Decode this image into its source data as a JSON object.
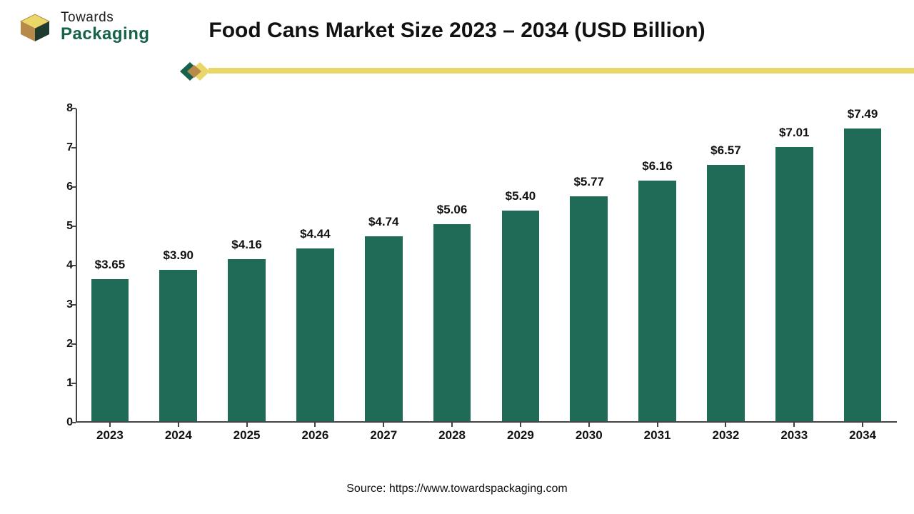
{
  "logo": {
    "line1": "Towards",
    "line2": "Packaging",
    "mark_colors": {
      "brown": "#b78a4a",
      "dark": "#1f3a2e",
      "yellow": "#ead76a",
      "outline": "#0e4a3a"
    }
  },
  "title": "Food Cans Market Size 2023 – 2034 (USD Billion)",
  "divider": {
    "line_color": "#ead76a",
    "glyph_colors": {
      "green": "#16624c",
      "brown": "#b78a4a",
      "yellow": "#ead76a"
    }
  },
  "chart": {
    "type": "bar",
    "categories": [
      "2023",
      "2024",
      "2025",
      "2026",
      "2027",
      "2028",
      "2029",
      "2030",
      "2031",
      "2032",
      "2033",
      "2034"
    ],
    "values": [
      3.65,
      3.9,
      4.16,
      4.44,
      4.74,
      5.06,
      5.4,
      5.77,
      6.16,
      6.57,
      7.01,
      7.49
    ],
    "value_labels": [
      "$3.65",
      "$3.90",
      "$4.16",
      "$4.44",
      "$4.74",
      "$5.06",
      "$5.40",
      "$5.77",
      "$6.16",
      "$6.57",
      "$7.01",
      "$7.49"
    ],
    "bar_color": "#1f6b58",
    "ylim": [
      0,
      8
    ],
    "yticks": [
      0,
      1,
      2,
      3,
      4,
      5,
      6,
      7,
      8
    ],
    "axis_color": "#444444",
    "label_fontsize": 17,
    "tick_fontsize": 16,
    "bar_width_ratio": 0.55,
    "background_color": "#ffffff"
  },
  "source": "Source: https://www.towardspackaging.com"
}
